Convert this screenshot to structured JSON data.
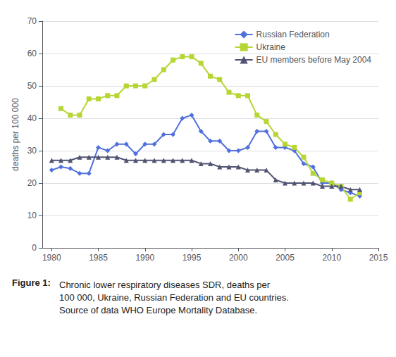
{
  "chart_data": {
    "type": "line",
    "ylabel": "deaths per 100 000",
    "caption_label": "Figure 1:",
    "caption": "Chronic lower respiratory diseases SDR, deaths per\n100 000, Ukraine, Russian Federation and EU countries.\nSource of data WHO Europe Mortality Database.",
    "series": [
      {
        "name": "Russian Federation",
        "marker": "diamond",
        "x": [
          1980,
          1981,
          1982,
          1983,
          1984,
          1985,
          1986,
          1987,
          1988,
          1989,
          1990,
          1991,
          1992,
          1993,
          1994,
          1995,
          1996,
          1997,
          1998,
          1999,
          2000,
          2001,
          2002,
          2003,
          2004,
          2005,
          2006,
          2007,
          2008,
          2009,
          2010,
          2011,
          2012,
          2013
        ],
        "values": [
          24,
          25,
          24.5,
          23,
          23,
          31,
          30,
          32,
          32,
          29,
          32,
          32,
          35,
          35,
          40,
          41,
          36,
          33,
          33,
          30,
          30,
          31,
          36,
          36,
          31,
          31,
          30,
          26,
          25,
          20,
          20,
          18,
          17,
          16
        ]
      },
      {
        "name": "Ukraine",
        "marker": "square",
        "x": [
          1981,
          1982,
          1983,
          1984,
          1985,
          1986,
          1987,
          1988,
          1989,
          1990,
          1991,
          1992,
          1993,
          1994,
          1995,
          1996,
          1997,
          1998,
          1999,
          2000,
          2001,
          2002,
          2003,
          2004,
          2005,
          2006,
          2007,
          2008,
          2009,
          2010,
          2011,
          2012,
          2013
        ],
        "values": [
          43,
          41,
          41,
          46,
          46,
          47,
          47,
          50,
          50,
          50,
          52,
          55,
          58,
          59,
          59,
          57,
          53,
          52,
          48,
          47,
          47,
          41,
          39,
          35,
          32,
          31,
          28,
          23,
          21,
          20,
          19,
          15,
          17
        ]
      },
      {
        "name": "EU members before May 2004",
        "marker": "triangle",
        "x": [
          1980,
          1981,
          1982,
          1983,
          1984,
          1985,
          1986,
          1987,
          1988,
          1989,
          1990,
          1991,
          1992,
          1993,
          1994,
          1995,
          1996,
          1997,
          1998,
          1999,
          2000,
          2001,
          2002,
          2003,
          2004,
          2005,
          2006,
          2007,
          2008,
          2009,
          2010,
          2011,
          2012,
          2013
        ],
        "values": [
          27,
          27,
          27,
          28,
          28,
          28,
          28,
          28,
          27,
          27,
          27,
          27,
          27,
          27,
          27,
          27,
          26,
          26,
          25,
          25,
          25,
          24,
          24,
          24,
          21,
          20,
          20,
          20,
          20,
          19,
          19,
          19,
          18,
          18
        ]
      }
    ],
    "xlim": [
      1979,
      2015
    ],
    "xticks": [
      1980,
      1985,
      1990,
      1995,
      2000,
      2005,
      2010,
      2015
    ],
    "ylim": [
      0,
      70
    ],
    "yticks": [
      0,
      10,
      20,
      30,
      40,
      50,
      60,
      70
    ],
    "grid": true,
    "legend": "upper right"
  }
}
